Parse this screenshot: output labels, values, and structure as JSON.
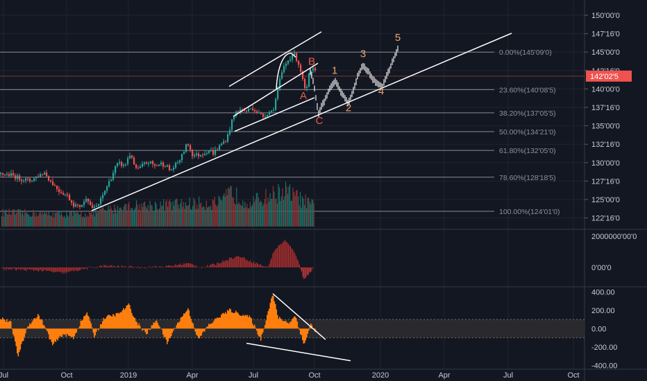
{
  "colors": {
    "background": "#131722",
    "grid": "#1f2430",
    "up": "#26a69a",
    "down": "#ef5350",
    "projection": "#f0f0f0",
    "trendline": "#ffffff",
    "fib_line": "#8a8d94",
    "wave_up": "#f0a46c",
    "wave_abc": "#f05a48",
    "cci_fill": "#ff7f0e",
    "price_badge": "#ef5350",
    "axis_text": "#c8cbd2"
  },
  "chart_data": {
    "type": "candlestick",
    "x_tick_labels": [
      "Jul",
      "Oct",
      "2019",
      "Apr",
      "Jul",
      "Oct",
      "2020",
      "Apr",
      "Jul",
      "Oct"
    ],
    "price_axis": {
      "labels": [
        "150'00'0",
        "147'16'0",
        "145'00'0",
        "142'16'0",
        "140'00'0",
        "137'16'0",
        "135'00'0",
        "132'16'0",
        "130'00'0",
        "127'16'0",
        "125'00'0",
        "122'16'0"
      ],
      "ylim": [
        121.9,
        151.5
      ]
    },
    "last_price": {
      "label": "142'02'5",
      "value": 142.08
    },
    "fib_levels": [
      {
        "label": "0.00%(145'09'0)",
        "value": 145.28
      },
      {
        "label": "23.60%(140'08'5)",
        "value": 140.27
      },
      {
        "label": "38.20%(137'05'5)",
        "value": 137.17
      },
      {
        "label": "50.00%(134'21'0)",
        "value": 134.66
      },
      {
        "label": "61.80%(132'05'0)",
        "value": 132.16
      },
      {
        "label": "78.60%(128'18'5)",
        "value": 128.58
      },
      {
        "label": "100.00%(124'01'0)",
        "value": 124.03
      }
    ],
    "price_path": [
      [
        0,
        129.0
      ],
      [
        14,
        128.9
      ],
      [
        28,
        128.4
      ],
      [
        42,
        128.1
      ],
      [
        56,
        128.9
      ],
      [
        63,
        129.2
      ],
      [
        72,
        128.0
      ],
      [
        84,
        126.8
      ],
      [
        96,
        126.1
      ],
      [
        104,
        125.0
      ],
      [
        112,
        124.6
      ],
      [
        120,
        125.2
      ],
      [
        124,
        126.2
      ],
      [
        128,
        125.0
      ],
      [
        134,
        124.3
      ],
      [
        142,
        125.1
      ],
      [
        150,
        126.8
      ],
      [
        158,
        128.3
      ],
      [
        166,
        130.1
      ],
      [
        172,
        130.4
      ],
      [
        178,
        130.0
      ],
      [
        184,
        131.3
      ],
      [
        188,
        131.8
      ],
      [
        192,
        130.0
      ],
      [
        198,
        129.6
      ],
      [
        206,
        130.3
      ],
      [
        214,
        130.6
      ],
      [
        222,
        130.1
      ],
      [
        230,
        130.4
      ],
      [
        238,
        130.2
      ],
      [
        244,
        129.4
      ],
      [
        252,
        130.2
      ],
      [
        260,
        131.2
      ],
      [
        266,
        132.6
      ],
      [
        270,
        133.0
      ],
      [
        276,
        131.6
      ],
      [
        284,
        131.5
      ],
      [
        292,
        131.8
      ],
      [
        300,
        132.2
      ],
      [
        306,
        131.8
      ],
      [
        312,
        132.4
      ],
      [
        318,
        133.0
      ],
      [
        326,
        133.8
      ],
      [
        332,
        135.8
      ],
      [
        338,
        137.2
      ],
      [
        346,
        137.6
      ],
      [
        354,
        137.4
      ],
      [
        362,
        137.9
      ],
      [
        370,
        137.2
      ],
      [
        378,
        136.7
      ],
      [
        386,
        137.3
      ],
      [
        392,
        137.5
      ],
      [
        396,
        139.0
      ],
      [
        402,
        141.5
      ],
      [
        408,
        143.3
      ],
      [
        414,
        144.2
      ],
      [
        420,
        145.0
      ],
      [
        424,
        144.8
      ],
      [
        428,
        144.0
      ],
      [
        432,
        142.8
      ],
      [
        436,
        141.0
      ],
      [
        440,
        139.8
      ],
      [
        444,
        142.2
      ],
      [
        450,
        142.9
      ],
      [
        453,
        142.6
      ]
    ],
    "projection_path": [
      [
        447,
        142.8
      ],
      [
        452,
        141.0
      ],
      [
        456,
        138.6
      ],
      [
        459,
        137.2
      ],
      [
        466,
        138.5
      ],
      [
        474,
        140.2
      ],
      [
        483,
        141.3
      ],
      [
        490,
        140.2
      ],
      [
        497,
        139.2
      ],
      [
        502,
        138.4
      ],
      [
        508,
        140.0
      ],
      [
        515,
        142.0
      ],
      [
        522,
        143.4
      ],
      [
        530,
        142.8
      ],
      [
        538,
        141.6
      ],
      [
        546,
        141.0
      ],
      [
        551,
        140.7
      ],
      [
        556,
        141.8
      ],
      [
        562,
        143.2
      ],
      [
        568,
        144.6
      ],
      [
        573,
        145.8
      ]
    ],
    "wave_labels": [
      {
        "text": "A",
        "x": 437,
        "y": 139.0,
        "kind": "abc"
      },
      {
        "text": "B",
        "x": 449,
        "y": 143.6,
        "kind": "abc"
      },
      {
        "text": "C",
        "x": 460,
        "y": 135.7,
        "kind": "abc"
      },
      {
        "text": "1",
        "x": 482,
        "y": 142.4,
        "kind": "impulse"
      },
      {
        "text": "2",
        "x": 502,
        "y": 137.4,
        "kind": "impulse"
      },
      {
        "text": "3",
        "x": 523,
        "y": 144.6,
        "kind": "impulse"
      },
      {
        "text": "4",
        "x": 549,
        "y": 139.6,
        "kind": "impulse"
      },
      {
        "text": "5",
        "x": 573,
        "y": 146.8,
        "kind": "impulse"
      }
    ],
    "trendlines": [
      [
        [
          132,
          124.1
        ],
        [
          737,
          147.8
        ]
      ],
      [
        [
          330,
          140.7
        ],
        [
          463,
          148.0
        ]
      ],
      [
        [
          336,
          136.7
        ],
        [
          458,
          143.8
        ]
      ],
      [
        [
          338,
          134.7
        ],
        [
          453,
          139.2
        ]
      ]
    ],
    "arc": [
      [
        398,
        140.4
      ],
      [
        400,
        143.6
      ],
      [
        410,
        145.3
      ],
      [
        420,
        145.1
      ],
      [
        426,
        144.6
      ]
    ],
    "volume_panel": {
      "bars": 300,
      "profile": [
        [
          0,
          0.35
        ],
        [
          120,
          0.3
        ],
        [
          180,
          0.5
        ],
        [
          240,
          0.55
        ],
        [
          320,
          0.6
        ],
        [
          330,
          0.85
        ],
        [
          360,
          0.6
        ],
        [
          410,
          0.9
        ],
        [
          420,
          0.8
        ],
        [
          453,
          0.5
        ]
      ]
    },
    "oscillator_1": {
      "axis_labels": [
        "2000000'00'0",
        "0'00'0"
      ],
      "profile": [
        [
          0,
          -0.05
        ],
        [
          60,
          -0.1
        ],
        [
          90,
          -0.18
        ],
        [
          120,
          -0.05
        ],
        [
          150,
          0.05
        ],
        [
          200,
          0.0
        ],
        [
          240,
          0.03
        ],
        [
          270,
          0.13
        ],
        [
          290,
          0.0
        ],
        [
          310,
          0.1
        ],
        [
          330,
          0.28
        ],
        [
          345,
          0.35
        ],
        [
          360,
          0.2
        ],
        [
          385,
          0.0
        ],
        [
          395,
          0.55
        ],
        [
          410,
          0.85
        ],
        [
          425,
          0.45
        ],
        [
          437,
          -0.35
        ],
        [
          447,
          -0.15
        ],
        [
          453,
          0.05
        ]
      ]
    },
    "oscillator_2": {
      "axis_labels": [
        "400.00",
        "200.00",
        "0.00",
        "-200.00",
        "-400.00"
      ],
      "ylim": [
        -420,
        440
      ],
      "band": [
        -100,
        100
      ],
      "profile": [
        [
          0,
          120
        ],
        [
          15,
          60
        ],
        [
          25,
          -300
        ],
        [
          40,
          40
        ],
        [
          55,
          150
        ],
        [
          65,
          0
        ],
        [
          75,
          -180
        ],
        [
          90,
          -60
        ],
        [
          105,
          -100
        ],
        [
          115,
          60
        ],
        [
          125,
          180
        ],
        [
          135,
          -80
        ],
        [
          150,
          120
        ],
        [
          170,
          160
        ],
        [
          185,
          260
        ],
        [
          195,
          80
        ],
        [
          210,
          -60
        ],
        [
          225,
          100
        ],
        [
          240,
          -160
        ],
        [
          255,
          60
        ],
        [
          270,
          220
        ],
        [
          285,
          -120
        ],
        [
          300,
          40
        ],
        [
          315,
          130
        ],
        [
          330,
          200
        ],
        [
          345,
          160
        ],
        [
          360,
          120
        ],
        [
          375,
          -120
        ],
        [
          392,
          380
        ],
        [
          400,
          120
        ],
        [
          415,
          60
        ],
        [
          425,
          140
        ],
        [
          437,
          -180
        ],
        [
          447,
          50
        ],
        [
          453,
          -40
        ]
      ],
      "trendlines": [
        [
          [
            393,
            380
          ],
          [
            469,
            -120
          ]
        ],
        [
          [
            355,
            -160
          ],
          [
            505,
            -350
          ]
        ]
      ]
    }
  }
}
